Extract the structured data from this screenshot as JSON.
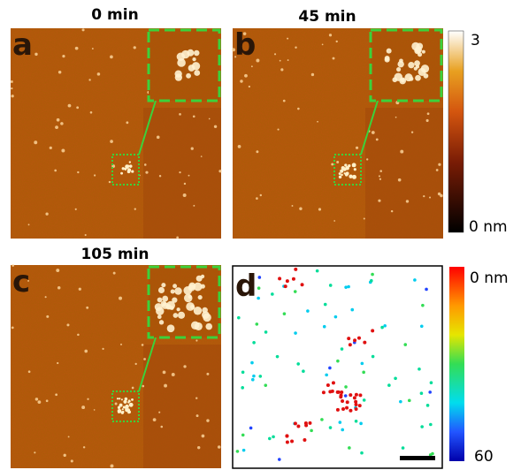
{
  "panels": [
    {
      "letter": "a",
      "title": "0 min"
    },
    {
      "letter": "b",
      "title": "45 min"
    },
    {
      "letter": "c",
      "title": "105 min"
    },
    {
      "letter": "d"
    }
  ],
  "height_colorbar": {
    "top_label": "3",
    "bottom_label": "0 nm"
  },
  "depth_colorbar": {
    "top_label": "0 nm",
    "bottom_label": "60"
  }
}
